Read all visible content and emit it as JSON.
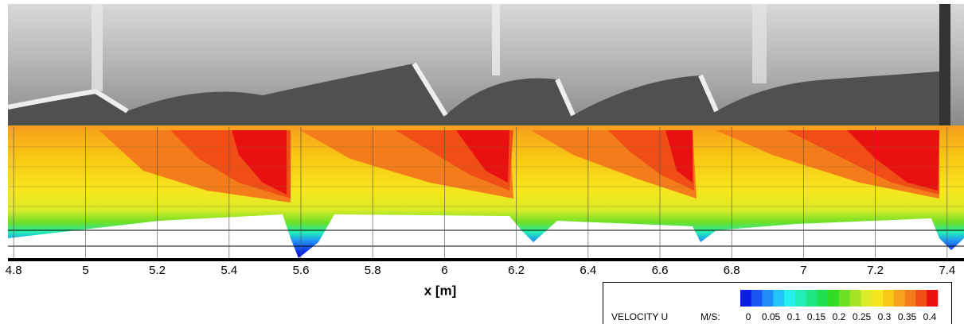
{
  "chart_data": {
    "type": "contour",
    "xlabel": "x [m]",
    "xlim": [
      4.784,
      7.447
    ],
    "xticks": [
      4.8,
      5,
      5.2,
      5.4,
      5.6,
      5.8,
      6,
      6.2,
      6.4,
      6.6,
      6.8,
      7,
      7.2,
      7.4
    ],
    "grid": true,
    "colorbar": {
      "label": "VELOCITY U",
      "unit": "M/S:",
      "clim": [
        0,
        0.4
      ],
      "ticks": [
        0,
        0.05,
        0.1,
        0.15,
        0.2,
        0.25,
        0.3,
        0.35,
        0.4
      ],
      "colors": [
        "#0a1ee8",
        "#1a55f5",
        "#1f8cf8",
        "#22c3f8",
        "#26f0ee",
        "#22ecb8",
        "#20e585",
        "#1ee050",
        "#32dc22",
        "#6ee024",
        "#a8e426",
        "#dceb28",
        "#f6e61e",
        "#f9c814",
        "#f7a21b",
        "#f47c1a",
        "#f04e16",
        "#e81010"
      ]
    }
  }
}
